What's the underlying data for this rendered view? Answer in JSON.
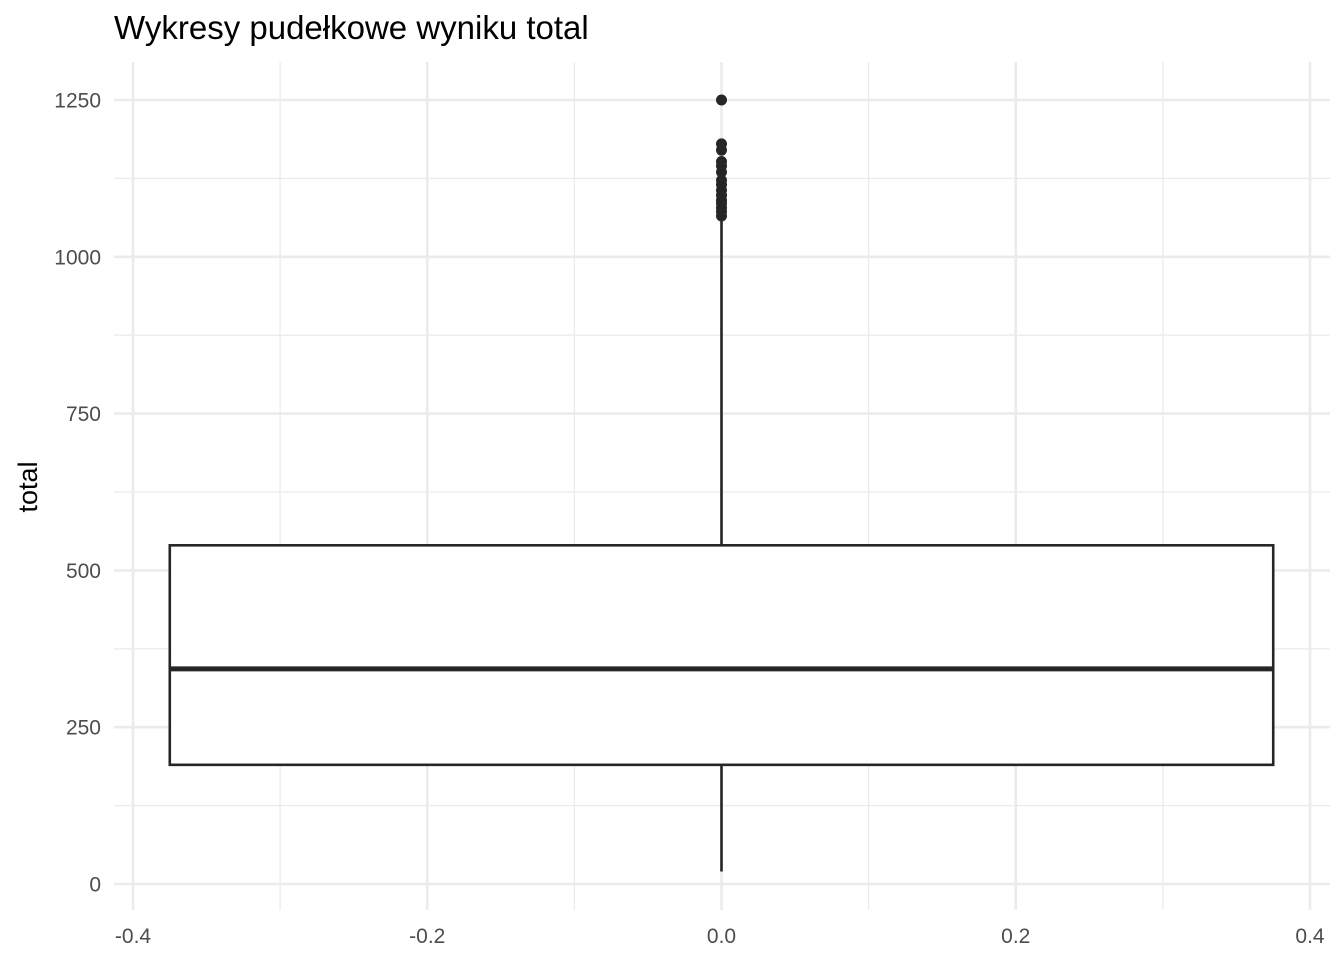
{
  "chart_data": {
    "type": "boxplot",
    "title": "Wykresy pudełkowe wyniku total",
    "xlabel": "",
    "ylabel": "total",
    "xlim": [
      -0.4,
      0.4
    ],
    "ylim": [
      0,
      1250
    ],
    "x_ticks": [
      "-0.4",
      "-0.2",
      "0.0",
      "0.2",
      "0.4"
    ],
    "y_ticks": [
      "0",
      "250",
      "500",
      "750",
      "1000",
      "1250"
    ],
    "grid": true,
    "box": {
      "x_center": 0.0,
      "x_min": -0.375,
      "x_max": 0.375,
      "lower_whisker": 20,
      "q1": 190,
      "median": 343,
      "q3": 540,
      "upper_whisker": 1060,
      "outliers": [
        1065,
        1072,
        1078,
        1085,
        1090,
        1098,
        1106,
        1115,
        1122,
        1135,
        1145,
        1152,
        1170,
        1180,
        1250
      ]
    },
    "colors": {
      "box_stroke": "#262626",
      "grid": "#ebebeb",
      "tick_text": "#4d4d4d"
    }
  }
}
